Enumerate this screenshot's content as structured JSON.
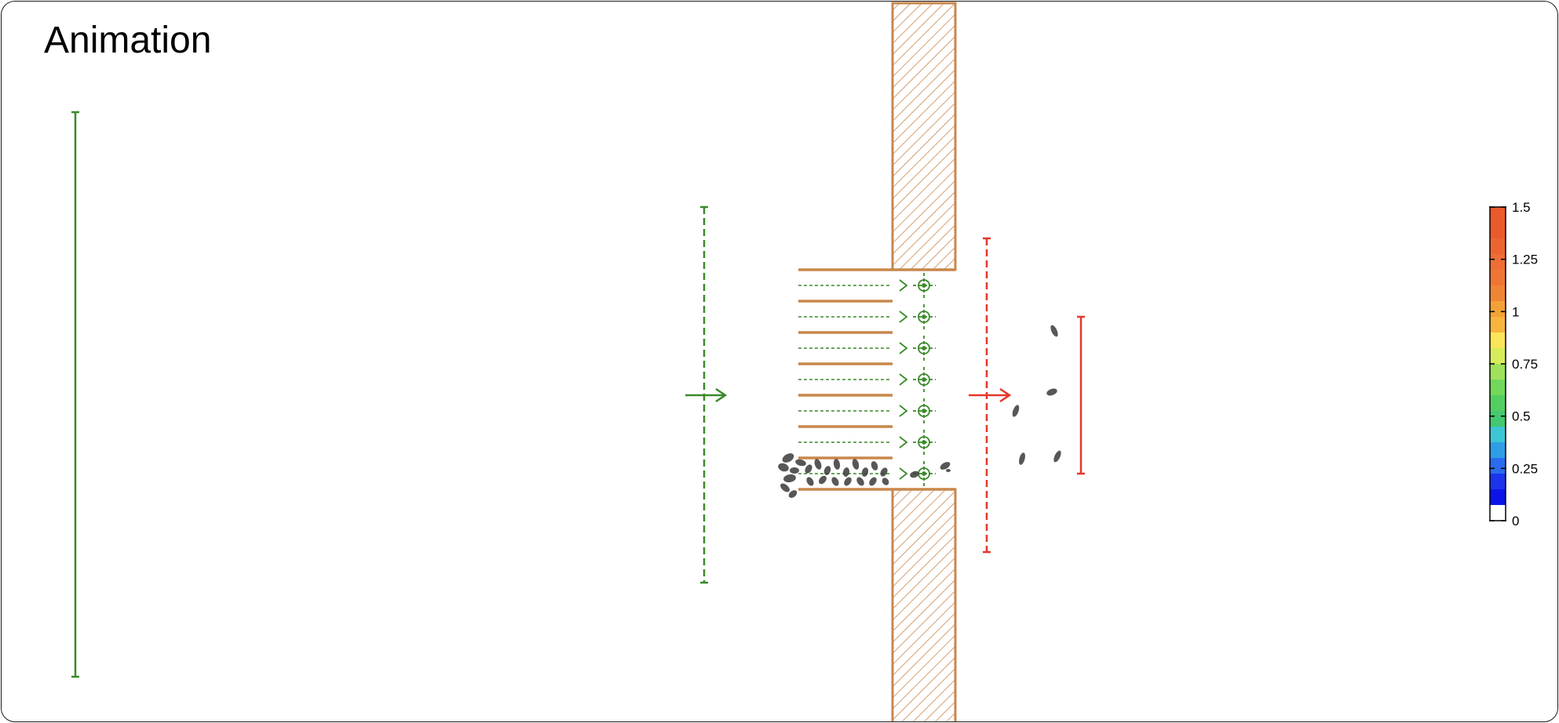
{
  "title": "Animation",
  "colorbar": {
    "ticks": [
      "1.5",
      "1.25",
      "1",
      "0.75",
      "0.5",
      "0.25",
      "0"
    ],
    "bands_top_to_bottom": [
      "#ea5a2a",
      "#ea5a2a",
      "#ec6530",
      "#ee6e35",
      "#ef7535",
      "#f08435",
      "#f4a236",
      "#f7b43f",
      "#fbe55a",
      "#d7ec5b",
      "#9fe15a",
      "#72d85a",
      "#52cf60",
      "#43c86f",
      "#3cc6d4",
      "#2f9de6",
      "#2b6bee",
      "#1b34ec",
      "#0a14e8",
      "#ffffff"
    ]
  },
  "colors": {
    "wall": "#c8874c",
    "entry": "#3a8a2a",
    "exit": "#e5372b",
    "agent": "#3a3a3a"
  },
  "lanes": 7
}
